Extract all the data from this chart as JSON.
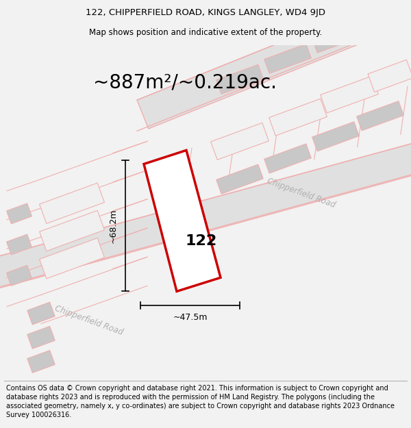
{
  "title_line1": "122, CHIPPERFIELD ROAD, KINGS LANGLEY, WD4 9JD",
  "title_line2": "Map shows position and indicative extent of the property.",
  "area_text": "~887m²/~0.219ac.",
  "label_122": "122",
  "label_68m": "~68.2m",
  "label_47m": "~47.5m",
  "road_label_lower": "Chipperfield Road",
  "road_label_upper": "Chipperfield Road",
  "footer_text": "Contains OS data © Crown copyright and database right 2021. This information is subject to Crown copyright and database rights 2023 and is reproduced with the permission of HM Land Registry. The polygons (including the associated geometry, namely x, y co-ordinates) are subject to Crown copyright and database rights 2023 Ordnance Survey 100026316.",
  "bg_color": "#f2f2f2",
  "map_bg_color": "#ffffff",
  "red_color": "#cc0000",
  "light_red": "#f0b0b0",
  "gray_fill": "#c8c8c8",
  "title_fontsize": 9.5,
  "subtitle_fontsize": 8.5,
  "area_fontsize": 20,
  "label_fontsize": 16,
  "dim_fontsize": 9,
  "footer_fontsize": 7
}
